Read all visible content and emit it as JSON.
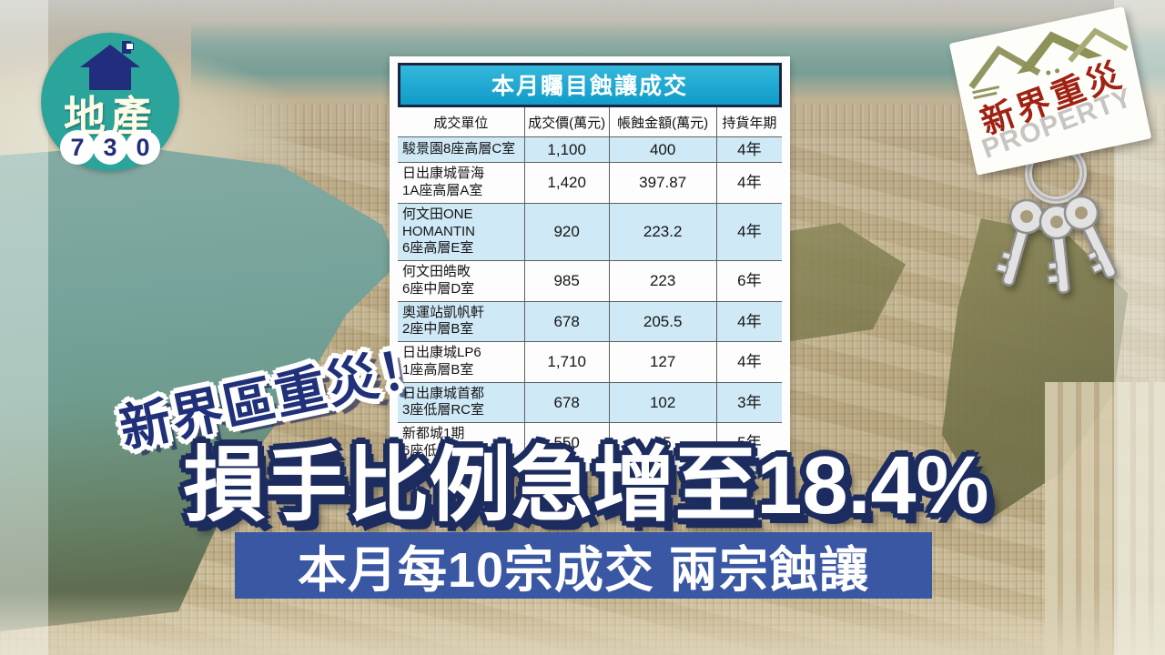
{
  "brand": {
    "name_cn": "地產",
    "digits": [
      "7",
      "3",
      "0"
    ]
  },
  "sign": {
    "title": "新界重災",
    "subtitle": "PROPERTY"
  },
  "overlay": {
    "tagline": "新界區重災！",
    "headline": "損手比例急增至18.4%",
    "banner": "本月每10宗成交 兩宗蝕讓"
  },
  "table": {
    "title": "本月矚目蝕讓成交",
    "columns": [
      "成交單位",
      "成交價(萬元)",
      "帳蝕金額(萬元)",
      "持貨年期"
    ],
    "rows": [
      {
        "unit_lines": [
          "駿景園8座高層C室"
        ],
        "price": "1,100",
        "loss": "400",
        "years": "4年"
      },
      {
        "unit_lines": [
          "日出康城晉海",
          "1A座高層A室"
        ],
        "price": "1,420",
        "loss": "397.87",
        "years": "4年"
      },
      {
        "unit_lines": [
          "何文田ONE",
          "HOMANTIN",
          "6座高層E室"
        ],
        "price": "920",
        "loss": "223.2",
        "years": "4年"
      },
      {
        "unit_lines": [
          "何文田皓畋",
          "6座中層D室"
        ],
        "price": "985",
        "loss": "223",
        "years": "6年"
      },
      {
        "unit_lines": [
          "奧運站凱帆軒",
          "2座中層B室"
        ],
        "price": "678",
        "loss": "205.5",
        "years": "4年"
      },
      {
        "unit_lines": [
          "日出康城LP6",
          "1座高層B室"
        ],
        "price": "1,710",
        "loss": "127",
        "years": "4年"
      },
      {
        "unit_lines": [
          "日出康城首都",
          "3座低層RC室"
        ],
        "price": "678",
        "loss": "102",
        "years": "3年"
      },
      {
        "unit_lines": [
          "新都城1期",
          "6座低層B室"
        ],
        "price": "550",
        "loss": "45",
        "years": "5年"
      }
    ]
  },
  "chart_data": {
    "type": "table",
    "title": "本月矚目蝕讓成交",
    "columns": [
      "成交單位",
      "成交價(萬元)",
      "帳蝕金額(萬元)",
      "持貨年期"
    ],
    "rows": [
      [
        "駿景園8座高層C室",
        "1,100",
        "400",
        "4年"
      ],
      [
        "日出康城晉海 1A座高層A室",
        "1,420",
        "397.87",
        "4年"
      ],
      [
        "何文田ONE HOMANTIN 6座高層E室",
        "920",
        "223.2",
        "4年"
      ],
      [
        "何文田皓畋 6座中層D室",
        "985",
        "223",
        "6年"
      ],
      [
        "奧運站凱帆軒 2座中層B室",
        "678",
        "205.5",
        "4年"
      ],
      [
        "日出康城LP6 1座高層B室",
        "1,710",
        "127",
        "4年"
      ],
      [
        "日出康城首都 3座低層RC室",
        "678",
        "102",
        "3年"
      ],
      [
        "新都城1期 6座低層B室",
        "550",
        "45",
        "5年"
      ]
    ],
    "annotations": [
      "新界區重災！",
      "損手比例急增至18.4%",
      "本月每10宗成交 兩宗蝕讓"
    ]
  },
  "colors": {
    "table_title_cyan": "#14a5cf",
    "table_border_navy": "#1b2440",
    "row_alt_blue": "#cfe9f6",
    "banner_blue": "#3a57a3",
    "headline_outline_navy": "#1d2c5f",
    "tagline_navy": "#20317a",
    "logo_teal": "#2ba49b",
    "logo_navy": "#232d7d",
    "sign_red": "#a02213",
    "roof_olive": "#939660"
  }
}
